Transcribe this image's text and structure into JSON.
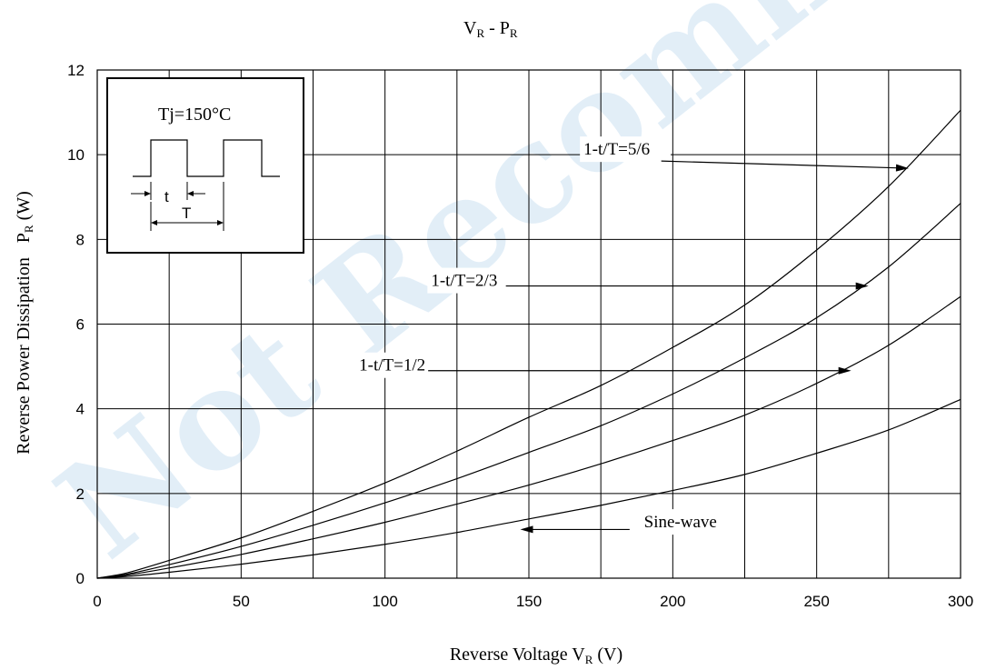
{
  "watermark": "Not Recommended",
  "chart_data": {
    "type": "line",
    "title": "V_R - P_R",
    "title_main": "V",
    "title_sub": "R",
    "title_mid": " - P",
    "title_sub2": "R",
    "xlabel": "Reverse Voltage V_R (V)",
    "xlabel_main": "Reverse Voltage V",
    "xlabel_sub": "R",
    "xlabel_end": " (V)",
    "ylabel": "Reverse Power Dissipation P_R (W)",
    "ylabel_main": "Reverse Power Dissipation",
    "ylabel_p": "P",
    "ylabel_sub": "R",
    "ylabel_end": " (W)",
    "xlim": [
      0,
      300
    ],
    "ylim": [
      0,
      12
    ],
    "x_ticks": [
      0,
      50,
      100,
      150,
      200,
      250,
      300
    ],
    "y_ticks": [
      0,
      2,
      4,
      6,
      8,
      10,
      12
    ],
    "x_grid_step": 25,
    "y_grid_step": 2,
    "grid": true,
    "series": [
      {
        "name": "1-t/T=5/6",
        "x": [
          0,
          10,
          25,
          50,
          75,
          100,
          125,
          150,
          175,
          200,
          225,
          250,
          275,
          300
        ],
        "values": [
          0,
          0.12,
          0.42,
          0.95,
          1.58,
          2.25,
          3.0,
          3.8,
          4.55,
          5.45,
          6.45,
          7.75,
          9.25,
          11.05
        ]
      },
      {
        "name": "1-t/T=2/3",
        "x": [
          0,
          10,
          25,
          50,
          75,
          100,
          125,
          150,
          175,
          200,
          225,
          250,
          275,
          300
        ],
        "values": [
          0,
          0.09,
          0.32,
          0.75,
          1.25,
          1.78,
          2.35,
          2.97,
          3.6,
          4.35,
          5.2,
          6.15,
          7.35,
          8.85
        ]
      },
      {
        "name": "1-t/T=1/2",
        "x": [
          0,
          10,
          25,
          50,
          75,
          100,
          125,
          150,
          175,
          200,
          225,
          250,
          275,
          300
        ],
        "values": [
          0,
          0.07,
          0.24,
          0.56,
          0.93,
          1.32,
          1.75,
          2.2,
          2.7,
          3.25,
          3.85,
          4.6,
          5.5,
          6.65
        ]
      },
      {
        "name": "Sine-wave",
        "x": [
          0,
          10,
          25,
          50,
          75,
          100,
          125,
          150,
          175,
          200,
          225,
          250,
          275,
          300
        ],
        "values": [
          0,
          0.04,
          0.14,
          0.33,
          0.55,
          0.8,
          1.08,
          1.4,
          1.72,
          2.07,
          2.45,
          2.95,
          3.5,
          4.22
        ]
      }
    ],
    "annotations": [
      {
        "text": "1-t/T=5/6",
        "label_x": 169,
        "label_y": 10.0,
        "arrow_from": [
          196,
          9.85
        ],
        "arrow_to": [
          282,
          9.68
        ]
      },
      {
        "text": "1-t/T=2/3",
        "label_x": 116,
        "label_y": 6.9,
        "arrow_from": [
          142,
          6.9
        ],
        "arrow_to": [
          268,
          6.9
        ]
      },
      {
        "text": "1-t/T=1/2",
        "label_x": 91,
        "label_y": 4.9,
        "arrow_from": [
          115,
          4.9
        ],
        "arrow_to": [
          262,
          4.9
        ]
      },
      {
        "text": "Sine-wave",
        "label_x": 190,
        "label_y": 1.2,
        "arrow_from": [
          185,
          1.15
        ],
        "arrow_to": [
          147,
          1.15
        ]
      }
    ],
    "inset": {
      "temperature_label": "Tj=150°C",
      "t_label": "t",
      "T_label": "T"
    }
  }
}
